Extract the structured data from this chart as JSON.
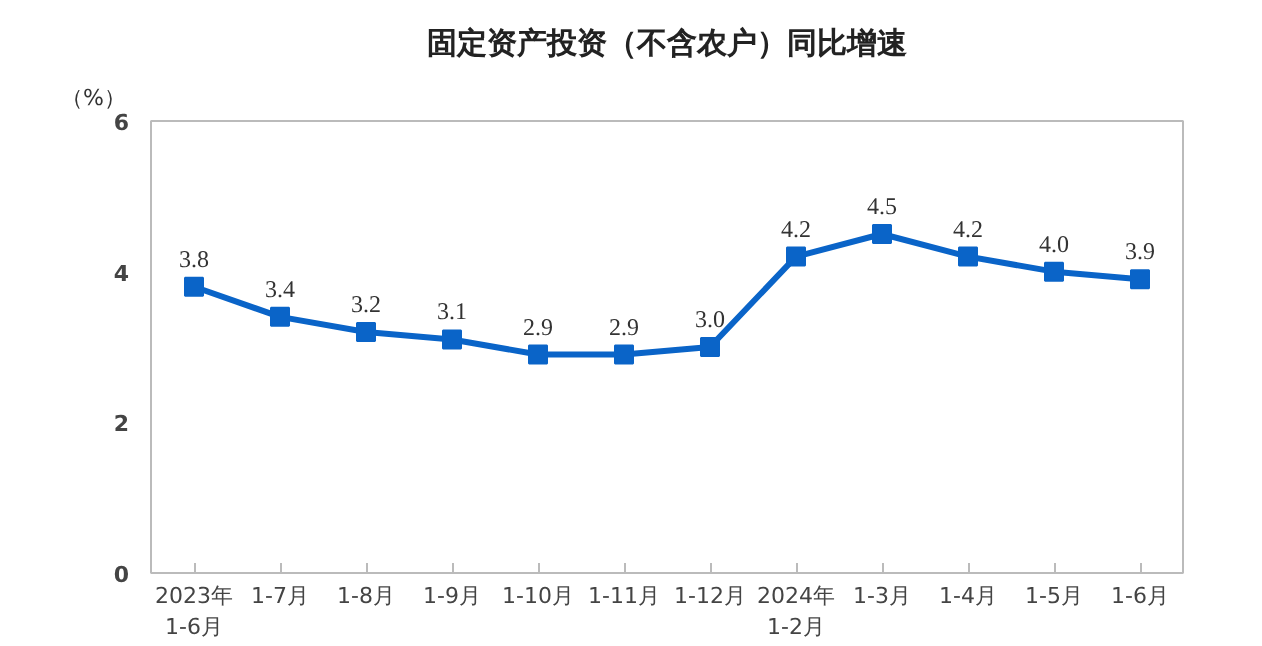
{
  "chart_data": {
    "type": "line",
    "title": "固定资产投资（不含农户）同比增速",
    "ylabel": "（%）",
    "categories": [
      "2023年\n1-6月",
      "1-7月",
      "1-8月",
      "1-9月",
      "1-10月",
      "1-11月",
      "1-12月",
      "2024年\n1-2月",
      "1-3月",
      "1-4月",
      "1-5月",
      "1-6月"
    ],
    "series": [
      {
        "color": "#0a64c8",
        "values": [
          3.8,
          3.4,
          3.2,
          3.1,
          2.9,
          2.9,
          3.0,
          4.2,
          4.5,
          4.2,
          4.0,
          3.9
        ],
        "value_labels": [
          "3.8",
          "3.4",
          "3.2",
          "3.1",
          "2.9",
          "2.9",
          "3.0",
          "4.2",
          "4.5",
          "4.2",
          "4.0",
          "3.9"
        ]
      }
    ],
    "ylim": [
      0,
      6
    ],
    "yticks": [
      0,
      2,
      4,
      6
    ],
    "marker": "square"
  }
}
